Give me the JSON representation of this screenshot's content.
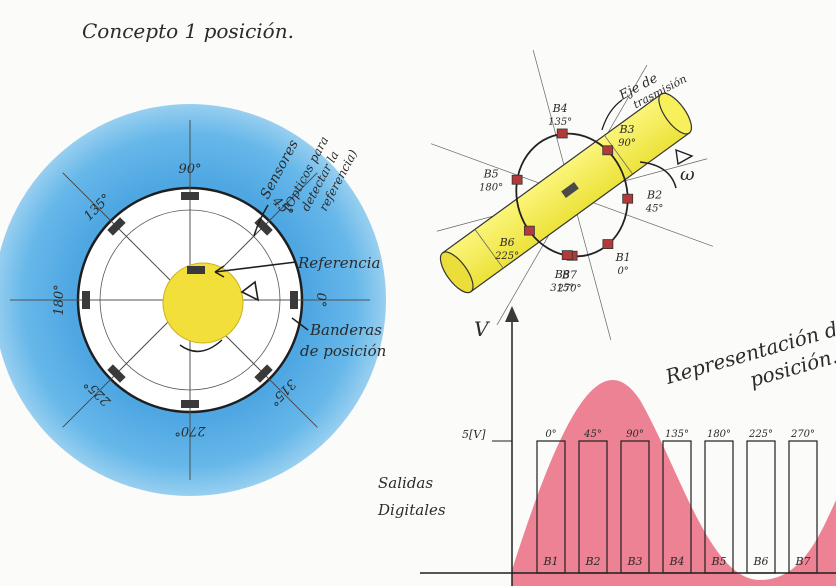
{
  "title": "Concepto 1  posición.",
  "disk": {
    "angle_labels": [
      "0°",
      "45°",
      "90°",
      "135°",
      "180°",
      "225°",
      "270°",
      "315°"
    ],
    "sensors_label": [
      "Sensores",
      "(Opticos para",
      "detectar la",
      "referencia)"
    ],
    "reference_label": "Referencia",
    "flags_label": [
      "Banderas",
      "de posición"
    ]
  },
  "shaft": {
    "axis_label": [
      "Eje de",
      "trasmisión"
    ],
    "omega_label": "ω",
    "sensor_labels": [
      "B1",
      "B2",
      "B3",
      "B4",
      "B5",
      "B6",
      "B7",
      "B8"
    ],
    "angle_labels": [
      "0°",
      "45°",
      "90°",
      "135°",
      "180°",
      "225°",
      "270°",
      "315°"
    ]
  },
  "representation_label": [
    "Representación de la",
    "posición."
  ],
  "chart_data": {
    "type": "bar",
    "ylabel": "V",
    "ytick": "5[V]",
    "categories": [
      "B1",
      "B2",
      "B3",
      "B4",
      "B5",
      "B6",
      "B7"
    ],
    "pulse_angles": [
      "0°",
      "45°",
      "90°",
      "135°",
      "180°",
      "225°",
      "270°"
    ],
    "values": [
      5,
      5,
      5,
      5,
      5,
      5,
      5
    ],
    "side_label": [
      "Salidas",
      "Digitales"
    ]
  },
  "colors": {
    "outer_ring": "#5aaee3",
    "inner_disk": "#ffffff",
    "hub": "#f3df3a",
    "shaft": "#f7f05a",
    "wave": "#ea6c82",
    "flag": "#3a3a3a",
    "sensor": "#b23a3a"
  }
}
